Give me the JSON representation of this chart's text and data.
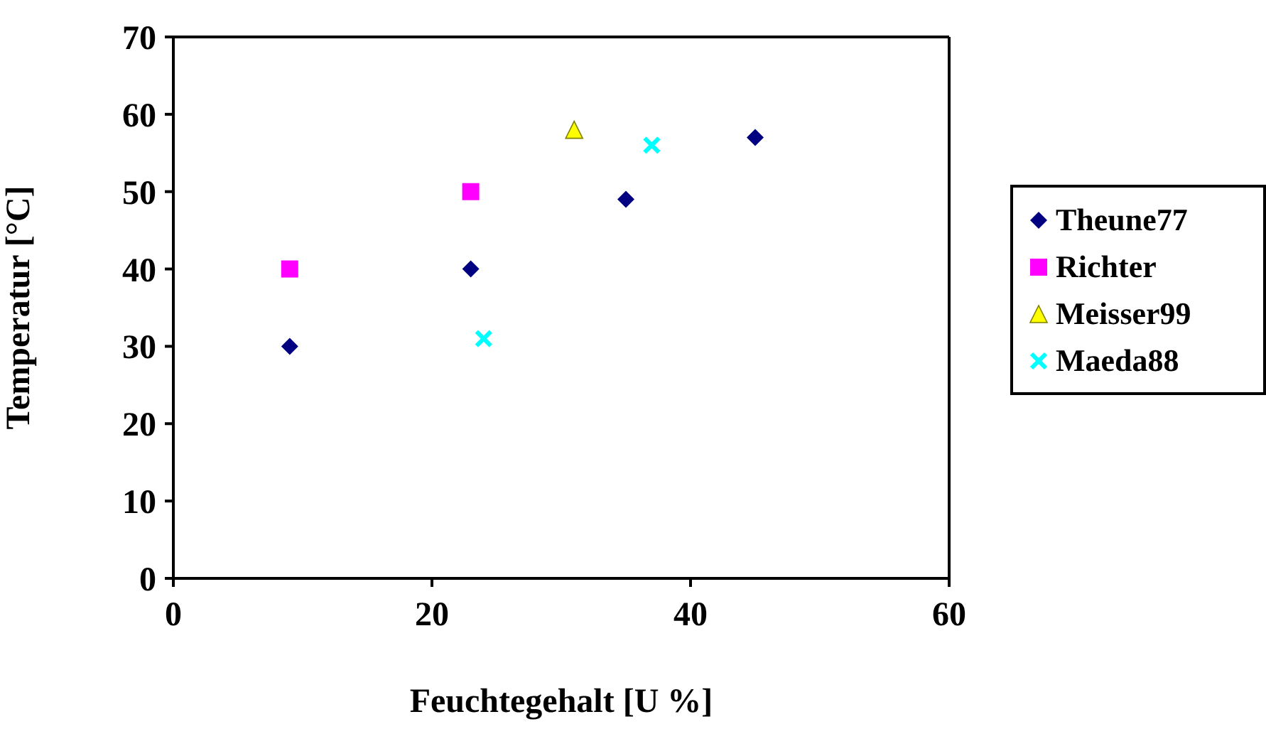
{
  "chart_data": {
    "type": "scatter",
    "xlabel": "Feuchtegehalt [U %]",
    "ylabel": "Temperatur [°C]",
    "xlim": [
      0,
      60
    ],
    "xticks": [
      0,
      20,
      40,
      60
    ],
    "ylim": [
      0,
      70
    ],
    "yticks": [
      0,
      10,
      20,
      30,
      40,
      50,
      60,
      70
    ],
    "grid": false,
    "legend": "right",
    "series": [
      {
        "name": "Theune77",
        "color": "#000080",
        "marker": "diamond",
        "x": [
          9,
          23,
          35,
          45
        ],
        "values": [
          30,
          40,
          49,
          57
        ]
      },
      {
        "name": "Richter",
        "color": "#ff00ff",
        "marker": "square",
        "x": [
          9,
          23
        ],
        "values": [
          40,
          50
        ]
      },
      {
        "name": "Meisser99",
        "color": "#ffff00",
        "marker": "triangle",
        "x": [
          31
        ],
        "values": [
          58
        ]
      },
      {
        "name": "Maeda88",
        "color": "#00ffff",
        "marker": "cross",
        "x": [
          24,
          37
        ],
        "values": [
          31,
          56
        ]
      }
    ]
  }
}
